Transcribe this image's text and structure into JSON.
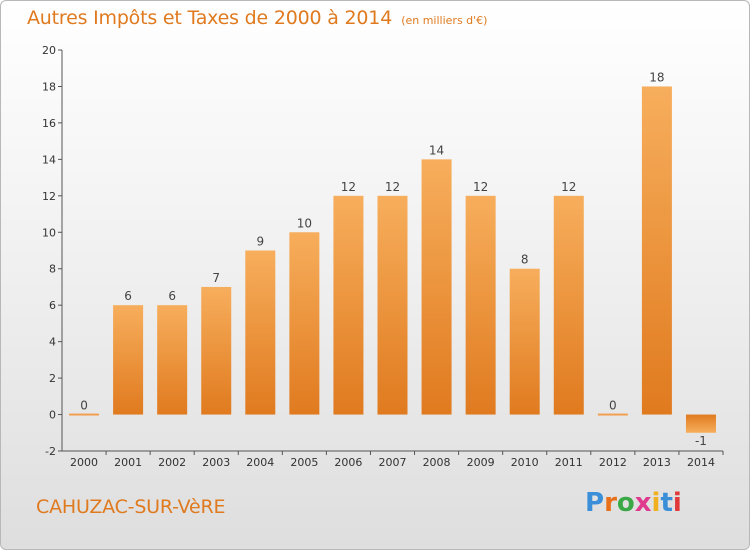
{
  "chart_data": {
    "type": "bar",
    "title": "Autres Impôts et Taxes de 2000 à 2014",
    "subtitle": "(en milliers d'€)",
    "categories": [
      "2000",
      "2001",
      "2002",
      "2003",
      "2004",
      "2005",
      "2006",
      "2007",
      "2008",
      "2009",
      "2010",
      "2011",
      "2012",
      "2013",
      "2014"
    ],
    "values": [
      0,
      6,
      6,
      7,
      9,
      10,
      12,
      12,
      14,
      12,
      8,
      12,
      0,
      18,
      -1
    ],
    "ylim": [
      -2,
      20
    ],
    "yticks": [
      -2,
      0,
      2,
      4,
      6,
      8,
      10,
      12,
      14,
      16,
      18,
      20
    ],
    "grid": false,
    "bar_color": "#f08c2e",
    "xlabel": "",
    "ylabel": ""
  },
  "footer": {
    "city": "CAHUZAC-SUR-VèRE"
  },
  "logo": {
    "text": "Proxiti",
    "letter_colors": [
      "#3b8fd8",
      "#e8701a",
      "#3aa845",
      "#e03a8e",
      "#f0b020",
      "#3b8fd8",
      "#e03a3a"
    ]
  },
  "colors": {
    "accent": "#e07a1f",
    "bar_top": "#f7ae5c",
    "bar_bottom": "#e07a1f"
  }
}
